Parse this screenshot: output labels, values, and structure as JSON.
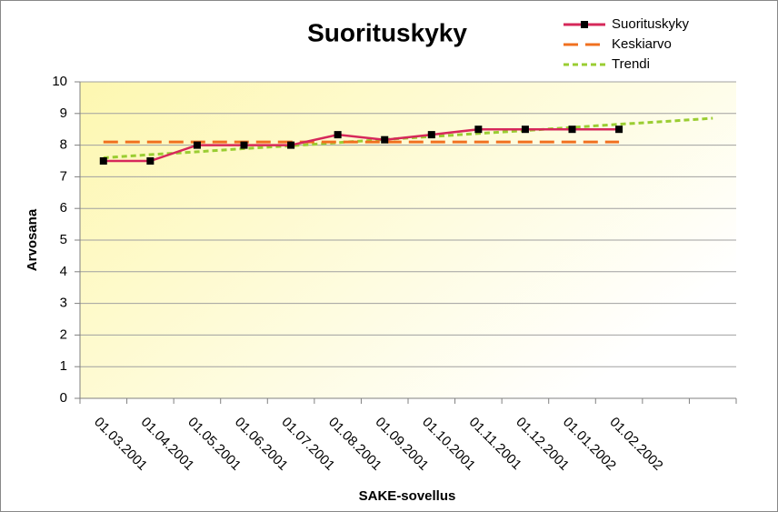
{
  "chart_data": {
    "type": "line",
    "title": "Suorituskyky",
    "x_label": "SAKE-sovellus",
    "y_label": "Arvosana",
    "categories": [
      "01.03.2001",
      "01.04.2001",
      "01.05.2001",
      "01.06.2001",
      "01.07.2001",
      "01.08.2001",
      "01.09.2001",
      "01.10.2001",
      "01.11.2001",
      "01.12.2001",
      "01.01.2002",
      "01.02.2002",
      null,
      null
    ],
    "series": [
      {
        "name": "Suorituskyky",
        "color": "#d6285a",
        "line_style": "solid",
        "marker": "square",
        "values": [
          7.5,
          7.5,
          8,
          8,
          8,
          8.33,
          8.17,
          8.33,
          8.5,
          8.5,
          8.5,
          8.5,
          null,
          null
        ]
      },
      {
        "name": "Keskiarvo",
        "color": "#f07020",
        "line_style": "dashed",
        "values": [
          8.1,
          8.1,
          8.1,
          8.1,
          8.1,
          8.1,
          8.1,
          8.1,
          8.1,
          8.1,
          8.1,
          8.1,
          null,
          null
        ]
      },
      {
        "name": "Trendi",
        "color": "#9acd32",
        "line_style": "dotted",
        "values": [
          7.6,
          7.7,
          7.79,
          7.89,
          7.98,
          8.08,
          8.18,
          8.27,
          8.37,
          8.46,
          8.56,
          8.66,
          8.75,
          8.85
        ]
      }
    ],
    "ylim": [
      0,
      10
    ],
    "yticks": [
      0,
      1,
      2,
      3,
      4,
      5,
      6,
      7,
      8,
      9,
      10
    ],
    "grid": true,
    "legend": "top-right"
  }
}
